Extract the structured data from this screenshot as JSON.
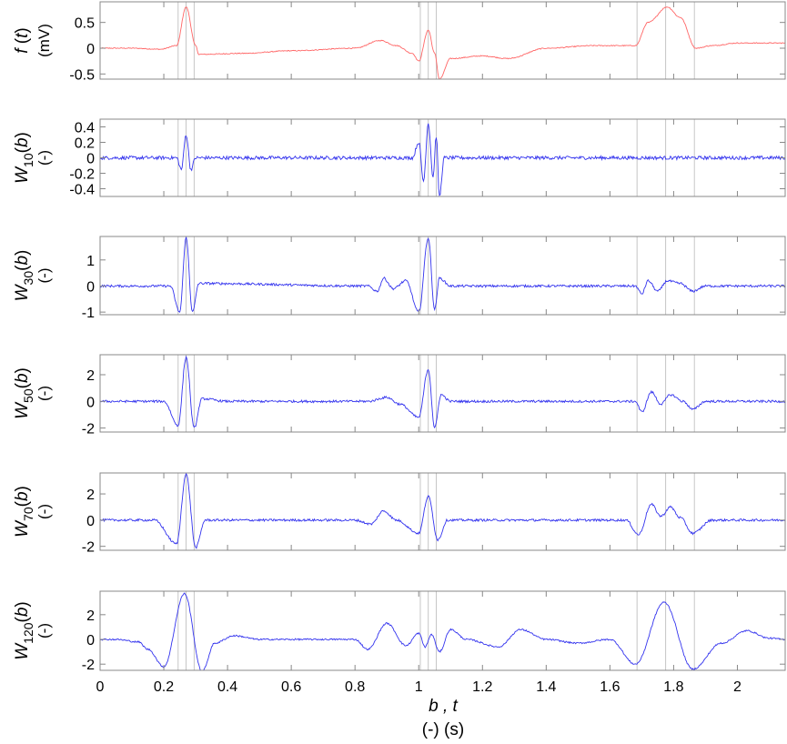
{
  "chart_data": {
    "type": "line",
    "x_range": [
      0,
      2.15
    ],
    "x_ticks": [
      0,
      0.2,
      0.4,
      0.6,
      0.8,
      1,
      1.2,
      1.4,
      1.6,
      1.8,
      2
    ],
    "x_tick_labels": [
      "0",
      "0.2",
      "0.4",
      "0.6",
      "0.8",
      "1",
      "1.2",
      "1.4",
      "1.6",
      "1.8",
      "2"
    ],
    "xlabel": {
      "line1_vars": "b ,  t",
      "line2_units": "(-)  (s)"
    },
    "markers": [
      0.245,
      0.27,
      0.295,
      1.005,
      1.03,
      1.055,
      1.685,
      1.775,
      1.865
    ],
    "grid": false,
    "panels": [
      {
        "id": "f",
        "ylabel": {
          "name": "f",
          "arg": "(t)",
          "unit": "(mV)"
        },
        "color": "#ff6666",
        "ylim": [
          -0.6,
          0.9
        ],
        "y_ticks": [
          0.5,
          0,
          -0.5
        ],
        "y_tick_labels": [
          "0.5",
          "0",
          "-0.5"
        ],
        "noise": 0.012,
        "series": [
          {
            "x": 0,
            "y": 0
          },
          {
            "x": 0.1,
            "y": 0
          },
          {
            "x": 0.19,
            "y": -0.02
          },
          {
            "x": 0.24,
            "y": 0.05
          },
          {
            "x": 0.27,
            "y": 0.8
          },
          {
            "x": 0.3,
            "y": 0.05
          },
          {
            "x": 0.31,
            "y": -0.12
          },
          {
            "x": 0.45,
            "y": -0.1
          },
          {
            "x": 0.6,
            "y": -0.05
          },
          {
            "x": 0.8,
            "y": 0.0
          },
          {
            "x": 0.88,
            "y": 0.15
          },
          {
            "x": 0.93,
            "y": 0.05
          },
          {
            "x": 0.98,
            "y": -0.1
          },
          {
            "x": 1.0,
            "y": -0.25
          },
          {
            "x": 1.03,
            "y": 0.35
          },
          {
            "x": 1.05,
            "y": -0.1
          },
          {
            "x": 1.065,
            "y": -0.6
          },
          {
            "x": 1.1,
            "y": -0.2
          },
          {
            "x": 1.2,
            "y": -0.15
          },
          {
            "x": 1.28,
            "y": -0.2
          },
          {
            "x": 1.4,
            "y": 0.0
          },
          {
            "x": 1.55,
            "y": 0.05
          },
          {
            "x": 1.68,
            "y": 0.05
          },
          {
            "x": 1.72,
            "y": 0.5
          },
          {
            "x": 1.78,
            "y": 0.8
          },
          {
            "x": 1.82,
            "y": 0.6
          },
          {
            "x": 1.87,
            "y": 0.0
          },
          {
            "x": 1.92,
            "y": 0.05
          },
          {
            "x": 2.0,
            "y": 0.1
          },
          {
            "x": 2.15,
            "y": 0.1
          }
        ]
      },
      {
        "id": "w10",
        "ylabel": {
          "name": "W",
          "sub": "10",
          "arg": "(b)",
          "unit": "(-)"
        },
        "color": "#3333ee",
        "ylim": [
          -0.5,
          0.5
        ],
        "y_ticks": [
          0.4,
          0.2,
          0,
          -0.2,
          -0.4
        ],
        "y_tick_labels": [
          "0.4",
          "0.2",
          "0",
          "-0.2",
          "-0.4"
        ],
        "noise": 0.045,
        "series": [
          {
            "x": 0,
            "y": 0
          },
          {
            "x": 0.24,
            "y": 0
          },
          {
            "x": 0.255,
            "y": -0.15
          },
          {
            "x": 0.27,
            "y": 0.3
          },
          {
            "x": 0.285,
            "y": -0.15
          },
          {
            "x": 0.3,
            "y": 0
          },
          {
            "x": 0.98,
            "y": 0
          },
          {
            "x": 1.0,
            "y": 0.2
          },
          {
            "x": 1.015,
            "y": -0.3
          },
          {
            "x": 1.03,
            "y": 0.45
          },
          {
            "x": 1.045,
            "y": -0.25
          },
          {
            "x": 1.055,
            "y": 0.28
          },
          {
            "x": 1.065,
            "y": -0.5
          },
          {
            "x": 1.08,
            "y": 0
          },
          {
            "x": 2.15,
            "y": 0
          }
        ]
      },
      {
        "id": "w30",
        "ylabel": {
          "name": "W",
          "sub": "30",
          "arg": "(b)",
          "unit": "(-)"
        },
        "color": "#3333ee",
        "ylim": [
          -1.1,
          1.9
        ],
        "y_ticks": [
          1,
          0,
          -1
        ],
        "y_tick_labels": [
          "1",
          "0",
          "-1"
        ],
        "noise": 0.03,
        "series": [
          {
            "x": 0,
            "y": 0
          },
          {
            "x": 0.22,
            "y": 0
          },
          {
            "x": 0.25,
            "y": -1.0
          },
          {
            "x": 0.27,
            "y": 1.85
          },
          {
            "x": 0.29,
            "y": -1.0
          },
          {
            "x": 0.31,
            "y": 0.1
          },
          {
            "x": 0.84,
            "y": 0
          },
          {
            "x": 0.87,
            "y": -0.2
          },
          {
            "x": 0.89,
            "y": 0.3
          },
          {
            "x": 0.92,
            "y": -0.1
          },
          {
            "x": 0.96,
            "y": 0.2
          },
          {
            "x": 1.0,
            "y": -1.0
          },
          {
            "x": 1.03,
            "y": 1.85
          },
          {
            "x": 1.05,
            "y": -0.9
          },
          {
            "x": 1.065,
            "y": 0.3
          },
          {
            "x": 1.1,
            "y": 0
          },
          {
            "x": 1.68,
            "y": 0
          },
          {
            "x": 1.7,
            "y": -0.3
          },
          {
            "x": 1.72,
            "y": 0.2
          },
          {
            "x": 1.75,
            "y": -0.2
          },
          {
            "x": 1.78,
            "y": 0.2
          },
          {
            "x": 1.82,
            "y": 0.1
          },
          {
            "x": 1.86,
            "y": -0.2
          },
          {
            "x": 1.9,
            "y": 0
          },
          {
            "x": 2.15,
            "y": 0
          }
        ]
      },
      {
        "id": "w50",
        "ylabel": {
          "name": "W",
          "sub": "50",
          "arg": "(b)",
          "unit": "(-)"
        },
        "color": "#3333ee",
        "ylim": [
          -2.3,
          3.5
        ],
        "y_ticks": [
          2,
          0,
          -2
        ],
        "y_tick_labels": [
          "2",
          "0",
          "-2"
        ],
        "noise": 0.03,
        "series": [
          {
            "x": 0,
            "y": 0
          },
          {
            "x": 0.2,
            "y": 0
          },
          {
            "x": 0.245,
            "y": -1.8
          },
          {
            "x": 0.27,
            "y": 3.3
          },
          {
            "x": 0.295,
            "y": -2.0
          },
          {
            "x": 0.32,
            "y": 0.2
          },
          {
            "x": 0.4,
            "y": 0
          },
          {
            "x": 0.84,
            "y": 0
          },
          {
            "x": 0.9,
            "y": 0.3
          },
          {
            "x": 0.94,
            "y": -0.2
          },
          {
            "x": 1.0,
            "y": -1.2
          },
          {
            "x": 1.03,
            "y": 2.4
          },
          {
            "x": 1.05,
            "y": -2.0
          },
          {
            "x": 1.07,
            "y": 0.5
          },
          {
            "x": 1.1,
            "y": 0
          },
          {
            "x": 1.68,
            "y": 0
          },
          {
            "x": 1.7,
            "y": -0.8
          },
          {
            "x": 1.73,
            "y": 0.7
          },
          {
            "x": 1.76,
            "y": -0.2
          },
          {
            "x": 1.79,
            "y": 0.5
          },
          {
            "x": 1.83,
            "y": 0
          },
          {
            "x": 1.86,
            "y": -0.6
          },
          {
            "x": 1.9,
            "y": 0
          },
          {
            "x": 2.15,
            "y": 0
          }
        ]
      },
      {
        "id": "w70",
        "ylabel": {
          "name": "W",
          "sub": "70",
          "arg": "(b)",
          "unit": "(-)"
        },
        "color": "#3333ee",
        "ylim": [
          -2.3,
          3.6
        ],
        "y_ticks": [
          2,
          0,
          -2
        ],
        "y_tick_labels": [
          "2",
          "0",
          "-2"
        ],
        "noise": 0.03,
        "series": [
          {
            "x": 0,
            "y": 0
          },
          {
            "x": 0.17,
            "y": 0
          },
          {
            "x": 0.24,
            "y": -1.8
          },
          {
            "x": 0.27,
            "y": 3.5
          },
          {
            "x": 0.3,
            "y": -2.1
          },
          {
            "x": 0.33,
            "y": 0
          },
          {
            "x": 0.8,
            "y": 0
          },
          {
            "x": 0.85,
            "y": -0.3
          },
          {
            "x": 0.89,
            "y": 0.7
          },
          {
            "x": 0.93,
            "y": 0
          },
          {
            "x": 1.0,
            "y": -1.0
          },
          {
            "x": 1.03,
            "y": 1.8
          },
          {
            "x": 1.06,
            "y": -1.5
          },
          {
            "x": 1.09,
            "y": 0
          },
          {
            "x": 1.65,
            "y": 0
          },
          {
            "x": 1.69,
            "y": -1.1
          },
          {
            "x": 1.73,
            "y": 1.2
          },
          {
            "x": 1.76,
            "y": 0.3
          },
          {
            "x": 1.79,
            "y": 1.0
          },
          {
            "x": 1.82,
            "y": 0.2
          },
          {
            "x": 1.86,
            "y": -1.0
          },
          {
            "x": 1.92,
            "y": 0
          },
          {
            "x": 2.15,
            "y": 0
          }
        ]
      },
      {
        "id": "w120",
        "ylabel": {
          "name": "W",
          "sub": "120",
          "arg": "(b)",
          "unit": "(-)"
        },
        "color": "#3333ee",
        "ylim": [
          -2.5,
          3.9
        ],
        "y_ticks": [
          2,
          0,
          -2
        ],
        "y_tick_labels": [
          "2",
          "0",
          "-2"
        ],
        "noise": 0.02,
        "series": [
          {
            "x": 0,
            "y": 0
          },
          {
            "x": 0.05,
            "y": 0
          },
          {
            "x": 0.12,
            "y": -0.2
          },
          {
            "x": 0.15,
            "y": -0.8
          },
          {
            "x": 0.2,
            "y": -2.2
          },
          {
            "x": 0.265,
            "y": 3.7
          },
          {
            "x": 0.32,
            "y": -2.6
          },
          {
            "x": 0.36,
            "y": -0.3
          },
          {
            "x": 0.42,
            "y": 0.3
          },
          {
            "x": 0.5,
            "y": 0
          },
          {
            "x": 0.8,
            "y": 0
          },
          {
            "x": 0.84,
            "y": -0.8
          },
          {
            "x": 0.9,
            "y": 1.3
          },
          {
            "x": 0.96,
            "y": -0.5
          },
          {
            "x": 1.0,
            "y": 0.5
          },
          {
            "x": 1.02,
            "y": -0.6
          },
          {
            "x": 1.04,
            "y": 0.4
          },
          {
            "x": 1.065,
            "y": -1.0
          },
          {
            "x": 1.1,
            "y": 0.8
          },
          {
            "x": 1.15,
            "y": 0
          },
          {
            "x": 1.25,
            "y": -0.6
          },
          {
            "x": 1.32,
            "y": 0.8
          },
          {
            "x": 1.4,
            "y": 0
          },
          {
            "x": 1.5,
            "y": -0.3
          },
          {
            "x": 1.6,
            "y": 0
          },
          {
            "x": 1.68,
            "y": -2.0
          },
          {
            "x": 1.77,
            "y": 3.0
          },
          {
            "x": 1.86,
            "y": -2.4
          },
          {
            "x": 1.95,
            "y": -0.3
          },
          {
            "x": 2.03,
            "y": 0.7
          },
          {
            "x": 2.1,
            "y": 0.1
          },
          {
            "x": 2.15,
            "y": 0
          }
        ]
      }
    ]
  }
}
